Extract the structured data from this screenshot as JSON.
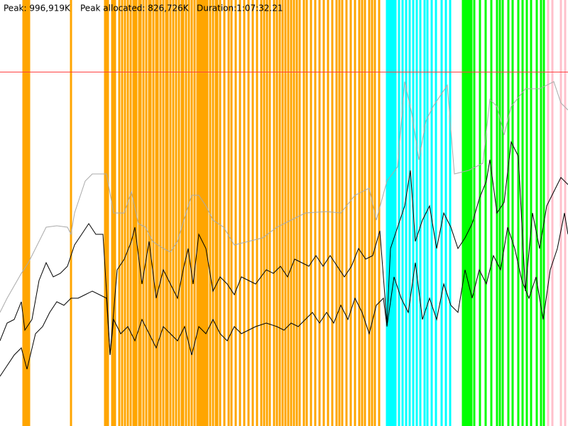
{
  "chart_data": {
    "type": "line",
    "stats": [
      "Peak: 996,919K",
      "Peak allocated: 826,726K",
      "Duration:1:07:32.21"
    ],
    "xlim": [
      0,
      4000
    ],
    "ylim": [
      0,
      1200000
    ],
    "reference_line": {
      "value": 996919,
      "color": "#ff4040"
    },
    "events": [
      {
        "color": "#ffa500",
        "x": [
          165,
          175,
          185,
          195,
          205,
          500,
          740,
          750,
          760,
          790,
          800,
          810,
          840,
          860,
          880,
          900,
          920,
          940,
          950,
          960,
          980,
          990,
          1010,
          1030,
          1050,
          1060,
          1080,
          1100,
          1110,
          1130,
          1150,
          1170,
          1180,
          1200,
          1220,
          1240,
          1260,
          1280,
          1290,
          1310,
          1330,
          1350,
          1370,
          1390,
          1400,
          1410,
          1420,
          1430,
          1440,
          1450,
          1460,
          1480,
          1500,
          1520,
          1530,
          1550,
          1580,
          1610,
          1630,
          1660,
          1690,
          1720,
          1750,
          1780,
          1810,
          1840,
          1860,
          1880,
          1900,
          1930,
          1950,
          1970,
          1990,
          2010,
          2030,
          2050,
          2070,
          2090,
          2110,
          2140,
          2160,
          2190,
          2220,
          2250,
          2280,
          2310,
          2340,
          2370,
          2390,
          2410,
          2440,
          2470,
          2500,
          2530,
          2550,
          2570,
          2600,
          2620,
          2640,
          2670
        ]
      },
      {
        "color": "#00ffff",
        "x": [
          2725,
          2740,
          2755,
          2770,
          2785,
          2810,
          2835,
          2860,
          2885,
          2910,
          2935,
          2960,
          2990,
          3010,
          3040,
          3070,
          3110,
          3140,
          3170
        ]
      },
      {
        "color": "#00ff00",
        "x": [
          3260,
          3275,
          3290,
          3305,
          3320,
          3340,
          3380,
          3420,
          3460,
          3500,
          3520,
          3540,
          3580,
          3610,
          3650,
          3680,
          3710,
          3740,
          3780,
          3810,
          3830
        ]
      },
      {
        "color": "#ffc0cb",
        "x": [
          3860,
          3890,
          3950,
          3980
        ]
      }
    ],
    "series": [
      {
        "color": "#aaaaaa",
        "x": [
          0,
          50,
          150,
          200,
          250,
          325,
          400,
          475,
          500,
          525,
          600,
          650,
          750,
          800,
          875,
          925,
          975,
          1025,
          1075,
          1150,
          1200,
          1250,
          1310,
          1350,
          1400,
          1450,
          1500,
          1575,
          1650,
          1750,
          1850,
          1950,
          2050,
          2150,
          2300,
          2400,
          2500,
          2600,
          2650,
          2725,
          2800,
          2850,
          2900,
          2950,
          3000,
          3050,
          3150,
          3200,
          3300,
          3400,
          3450,
          3500,
          3550,
          3600,
          3700,
          3800,
          3900,
          3950,
          4000
        ],
        "values": [
          320000,
          360000,
          430000,
          460000,
          500000,
          560000,
          564000,
          560000,
          540000,
          600000,
          690000,
          710000,
          710000,
          600000,
          600000,
          660000,
          570000,
          560000,
          520000,
          500000,
          490000,
          520000,
          600000,
          650000,
          650000,
          620000,
          580000,
          560000,
          510000,
          520000,
          530000,
          560000,
          580000,
          600000,
          604000,
          600000,
          650000,
          670000,
          580000,
          690000,
          730000,
          970000,
          880000,
          750000,
          860000,
          900000,
          960000,
          710000,
          720000,
          740000,
          920000,
          900000,
          820000,
          900000,
          950000,
          950000,
          970000,
          910000,
          890000
        ]
      },
      {
        "color": "#000000",
        "x": [
          0,
          50,
          100,
          150,
          175,
          225,
          275,
          325,
          375,
          425,
          475,
          525,
          575,
          625,
          675,
          725,
          750,
          775,
          825,
          875,
          925,
          950,
          1000,
          1050,
          1100,
          1150,
          1200,
          1250,
          1290,
          1325,
          1360,
          1400,
          1450,
          1500,
          1550,
          1600,
          1650,
          1700,
          1750,
          1800,
          1875,
          1925,
          1975,
          2025,
          2075,
          2125,
          2175,
          2225,
          2275,
          2325,
          2375,
          2425,
          2475,
          2525,
          2575,
          2625,
          2675,
          2725,
          2750,
          2800,
          2850,
          2890,
          2925,
          2975,
          3025,
          3075,
          3125,
          3175,
          3225,
          3275,
          3325,
          3375,
          3425,
          3450,
          3500,
          3550,
          3600,
          3650,
          3700,
          3750,
          3800,
          3850,
          3900,
          3950,
          4000
        ],
        "values": [
          240000,
          290000,
          300000,
          350000,
          270000,
          300000,
          410000,
          460000,
          420000,
          430000,
          450000,
          510000,
          540000,
          570000,
          540000,
          540000,
          380000,
          200000,
          440000,
          470000,
          520000,
          560000,
          400000,
          520000,
          360000,
          440000,
          400000,
          360000,
          440000,
          500000,
          400000,
          540000,
          500000,
          380000,
          420000,
          400000,
          370000,
          420000,
          410000,
          400000,
          440000,
          430000,
          450000,
          420000,
          470000,
          460000,
          450000,
          480000,
          450000,
          480000,
          450000,
          420000,
          450000,
          500000,
          470000,
          480000,
          550000,
          290000,
          500000,
          560000,
          620000,
          720000,
          520000,
          580000,
          620000,
          500000,
          600000,
          560000,
          500000,
          530000,
          570000,
          640000,
          690000,
          750000,
          600000,
          630000,
          800000,
          760000,
          380000,
          600000,
          500000,
          620000,
          660000,
          700000,
          680000
        ]
      },
      {
        "color": "#000000",
        "x": [
          0,
          50,
          100,
          150,
          190,
          250,
          300,
          350,
          400,
          450,
          500,
          550,
          600,
          650,
          750,
          775,
          800,
          850,
          900,
          950,
          1000,
          1050,
          1100,
          1150,
          1200,
          1250,
          1300,
          1350,
          1400,
          1450,
          1500,
          1550,
          1600,
          1650,
          1700,
          1750,
          1800,
          1875,
          1950,
          2000,
          2050,
          2100,
          2150,
          2200,
          2250,
          2300,
          2350,
          2400,
          2450,
          2500,
          2550,
          2600,
          2650,
          2700,
          2725,
          2775,
          2825,
          2875,
          2925,
          2975,
          3025,
          3075,
          3125,
          3175,
          3225,
          3275,
          3325,
          3375,
          3425,
          3475,
          3525,
          3575,
          3625,
          3675,
          3725,
          3775,
          3825,
          3875,
          3925,
          3975,
          4000
        ],
        "values": [
          140000,
          170000,
          200000,
          220000,
          160000,
          260000,
          280000,
          320000,
          350000,
          340000,
          360000,
          360000,
          370000,
          380000,
          360000,
          200000,
          300000,
          260000,
          280000,
          240000,
          300000,
          260000,
          220000,
          280000,
          260000,
          240000,
          280000,
          200000,
          280000,
          260000,
          300000,
          260000,
          240000,
          280000,
          260000,
          270000,
          280000,
          290000,
          280000,
          270000,
          290000,
          280000,
          300000,
          320000,
          290000,
          320000,
          290000,
          340000,
          300000,
          360000,
          320000,
          260000,
          340000,
          360000,
          280000,
          420000,
          360000,
          320000,
          460000,
          300000,
          360000,
          300000,
          400000,
          340000,
          320000,
          440000,
          360000,
          440000,
          400000,
          480000,
          440000,
          560000,
          500000,
          410000,
          360000,
          420000,
          300000,
          440000,
          500000,
          600000,
          540000
        ]
      }
    ]
  }
}
